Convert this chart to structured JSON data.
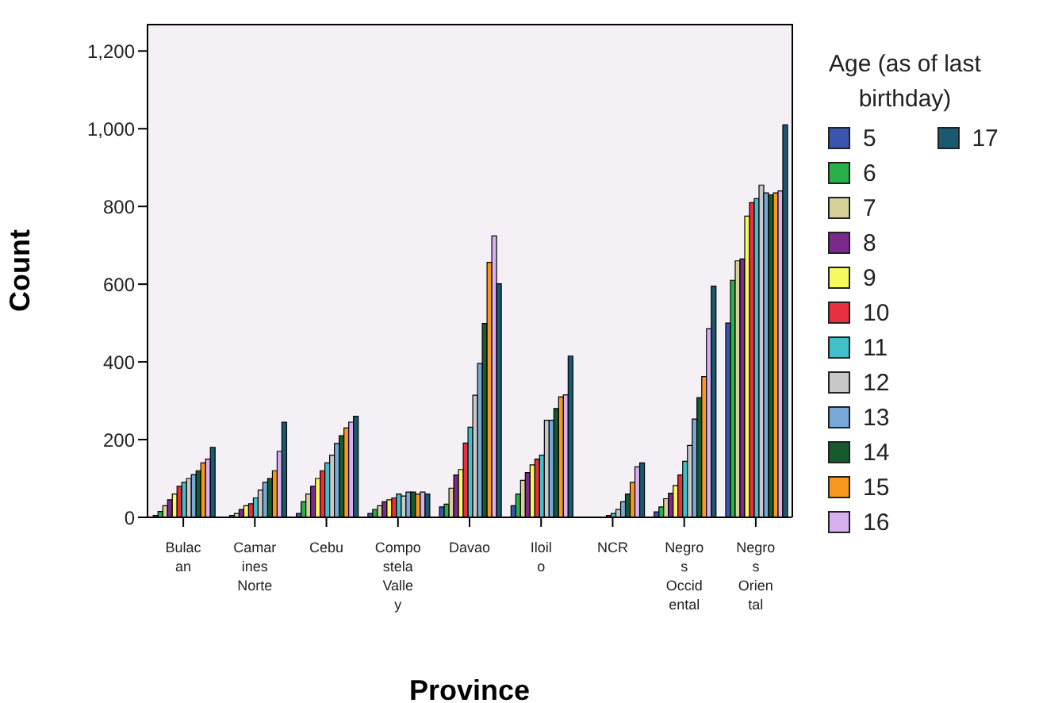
{
  "chart_data": {
    "type": "bar",
    "xlabel": "Province",
    "ylabel": "Count",
    "legend_title": "Age (as of last birthday)",
    "legend": "right",
    "categories": [
      "Bulacan",
      "Camarines Norte",
      "Cebu",
      "Compostela Valley",
      "Davao",
      "Iloilo",
      "NCR",
      "Negros Occidental",
      "Negros Oriental"
    ],
    "ylim": [
      0,
      1270
    ],
    "yticks": [
      0,
      {
        "value": 200,
        "label": "200"
      },
      {
        "value": 400,
        "label": "400"
      },
      {
        "value": 600,
        "label": "600"
      },
      {
        "value": 800,
        "label": "800"
      },
      {
        "value": 1000,
        "label": "1,000"
      },
      {
        "value": 1200,
        "label": "1,200"
      }
    ],
    "series": [
      {
        "name": "5",
        "color": "#3a55b0",
        "values": [
          5,
          0,
          10,
          10,
          27,
          30,
          0,
          14,
          500
        ]
      },
      {
        "name": "6",
        "color": "#2ab04a",
        "values": [
          15,
          5,
          40,
          20,
          34,
          60,
          0,
          27,
          610
        ]
      },
      {
        "name": "7",
        "color": "#d8d09a",
        "values": [
          30,
          10,
          60,
          30,
          75,
          95,
          0,
          48,
          660
        ]
      },
      {
        "name": "8",
        "color": "#7a2a8a",
        "values": [
          45,
          20,
          80,
          40,
          109,
          115,
          0,
          62,
          665
        ]
      },
      {
        "name": "9",
        "color": "#f8f860",
        "values": [
          60,
          30,
          100,
          45,
          123,
          135,
          0,
          82,
          775
        ]
      },
      {
        "name": "10",
        "color": "#e83040",
        "values": [
          80,
          35,
          120,
          50,
          191,
          150,
          5,
          109,
          810
        ]
      },
      {
        "name": "11",
        "color": "#40c0c8",
        "values": [
          90,
          50,
          140,
          60,
          232,
          160,
          10,
          144,
          820
        ]
      },
      {
        "name": "12",
        "color": "#c8c8c8",
        "values": [
          100,
          70,
          160,
          55,
          314,
          250,
          20,
          185,
          855
        ]
      },
      {
        "name": "13",
        "color": "#78a8d8",
        "values": [
          110,
          90,
          190,
          65,
          396,
          250,
          40,
          253,
          835
        ]
      },
      {
        "name": "14",
        "color": "#185a30",
        "values": [
          120,
          100,
          210,
          65,
          499,
          280,
          60,
          308,
          830
        ]
      },
      {
        "name": "15",
        "color": "#f89820",
        "values": [
          140,
          120,
          230,
          60,
          656,
          310,
          90,
          362,
          835
        ]
      },
      {
        "name": "16",
        "color": "#d8b0f0",
        "values": [
          150,
          170,
          245,
          65,
          724,
          315,
          130,
          485,
          840
        ]
      },
      {
        "name": "17",
        "color": "#1a5a70",
        "values": [
          180,
          245,
          260,
          60,
          601,
          415,
          140,
          595,
          1010
        ]
      }
    ]
  }
}
